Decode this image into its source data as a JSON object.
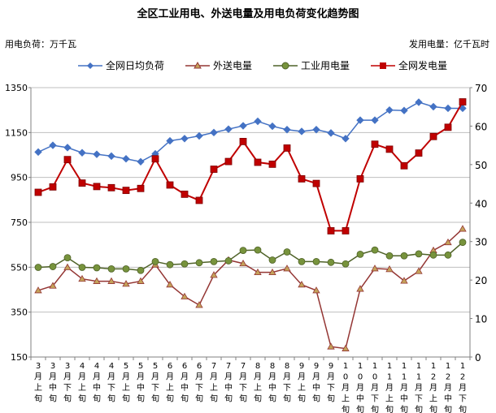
{
  "chart_data": {
    "type": "line",
    "title": "全区工业用电、外送电量及用电负荷变化趋势图",
    "left_unit": "用电负荷：万千瓦",
    "right_unit": "发用电量：亿千瓦时",
    "categories": [
      "3月上旬",
      "3月中旬",
      "3月下旬",
      "4月上旬",
      "4月中旬",
      "4月下旬",
      "5月上旬",
      "5月中旬",
      "5月下旬",
      "6月上旬",
      "6月中旬",
      "6月下旬",
      "7月上旬",
      "7月中旬",
      "7月下旬",
      "8月上旬",
      "8月中旬",
      "8月下旬",
      "9月上旬",
      "9月中旬",
      "9月下旬",
      "10月上旬",
      "10月中旬",
      "10月下旬",
      "11月上旬",
      "11月中旬",
      "11月下旬",
      "12月上旬",
      "12月中旬",
      "12月下旬"
    ],
    "tick_labels": [
      [
        "3",
        "月",
        "上",
        "旬"
      ],
      [
        "3",
        "月",
        "中",
        "旬"
      ],
      [
        "3",
        "月",
        "下",
        "旬"
      ],
      [
        "4",
        "月",
        "上",
        "旬"
      ],
      [
        "4",
        "月",
        "中",
        "旬"
      ],
      [
        "4",
        "月",
        "下",
        "旬"
      ],
      [
        "5",
        "月",
        "上",
        "旬"
      ],
      [
        "5",
        "月",
        "中",
        "旬"
      ],
      [
        "5",
        "月",
        "下",
        "旬"
      ],
      [
        "6",
        "月",
        "上",
        "旬"
      ],
      [
        "6",
        "月",
        "中",
        "旬"
      ],
      [
        "6",
        "月",
        "下",
        "旬"
      ],
      [
        "7",
        "月",
        "上",
        "旬"
      ],
      [
        "7",
        "月",
        "中",
        "旬"
      ],
      [
        "7",
        "月",
        "下",
        "旬"
      ],
      [
        "8",
        "月",
        "上",
        "旬"
      ],
      [
        "8",
        "月",
        "中",
        "旬"
      ],
      [
        "8",
        "月",
        "下",
        "旬"
      ],
      [
        "9",
        "月",
        "上",
        "旬"
      ],
      [
        "9",
        "月",
        "中",
        "旬"
      ],
      [
        "9",
        "月",
        "下",
        "旬"
      ],
      [
        "1",
        "0",
        "月",
        "上",
        "旬"
      ],
      [
        "1",
        "0",
        "月",
        "中",
        "旬"
      ],
      [
        "1",
        "0",
        "月",
        "下",
        "旬"
      ],
      [
        "1",
        "1",
        "月",
        "上",
        "旬"
      ],
      [
        "1",
        "1",
        "月",
        "中",
        "旬"
      ],
      [
        "1",
        "1",
        "月",
        "下",
        "旬"
      ],
      [
        "1",
        "2",
        "月",
        "上",
        "旬"
      ],
      [
        "1",
        "2",
        "月",
        "中",
        "旬"
      ],
      [
        "1",
        "2",
        "月",
        "下",
        "旬"
      ]
    ],
    "y_left": {
      "min": 150,
      "max": 1350,
      "ticks": [
        150,
        350,
        550,
        750,
        950,
        1150,
        1350
      ]
    },
    "y_right": {
      "min": 0,
      "max": 70,
      "ticks": [
        0,
        10,
        20,
        30,
        40,
        50,
        60,
        70
      ]
    },
    "grid": true,
    "legend_position": "top",
    "series": [
      {
        "name": "全网日均负荷",
        "axis": "left",
        "color": "#4472c4",
        "marker": "diamond",
        "values": [
          1063,
          1093,
          1083,
          1060,
          1053,
          1045,
          1033,
          1020,
          1055,
          1113,
          1123,
          1135,
          1150,
          1165,
          1180,
          1200,
          1178,
          1163,
          1155,
          1163,
          1148,
          1123,
          1205,
          1205,
          1250,
          1248,
          1285,
          1265,
          1258,
          1258
        ]
      },
      {
        "name": "外送电量",
        "axis": "right",
        "color": "#943634",
        "marker": "triangle",
        "values": [
          17.3,
          18.5,
          23.3,
          20.3,
          19.7,
          19.7,
          19.0,
          19.7,
          24.0,
          18.8,
          15.7,
          13.5,
          21.3,
          25.2,
          24.3,
          22.0,
          22.0,
          23.0,
          18.8,
          17.3,
          2.7,
          2.2,
          17.7,
          23.0,
          22.8,
          19.8,
          22.3,
          27.7,
          29.8,
          33.3
        ]
      },
      {
        "name": "工业用电量",
        "axis": "right",
        "color": "#4f6228",
        "marker": "circle",
        "values": [
          23.3,
          23.5,
          25.8,
          23.3,
          23.2,
          22.9,
          22.9,
          22.5,
          24.8,
          24.0,
          24.2,
          24.5,
          24.8,
          25.0,
          27.7,
          27.8,
          25.2,
          27.3,
          24.8,
          24.8,
          24.6,
          24.2,
          26.7,
          27.8,
          26.3,
          26.3,
          26.8,
          26.5,
          26.5,
          29.8
        ]
      },
      {
        "name": "全网发电量",
        "axis": "right",
        "color": "#c00000",
        "marker": "square",
        "values": [
          42.8,
          44.2,
          51.3,
          45.2,
          44.3,
          44.0,
          43.3,
          43.8,
          51.5,
          44.7,
          42.3,
          40.7,
          48.8,
          50.8,
          56.0,
          50.6,
          50.1,
          54.3,
          46.3,
          45.1,
          32.8,
          32.8,
          46.3,
          55.3,
          54.0,
          49.7,
          53.0,
          57.3,
          59.7,
          66.3
        ]
      }
    ]
  }
}
